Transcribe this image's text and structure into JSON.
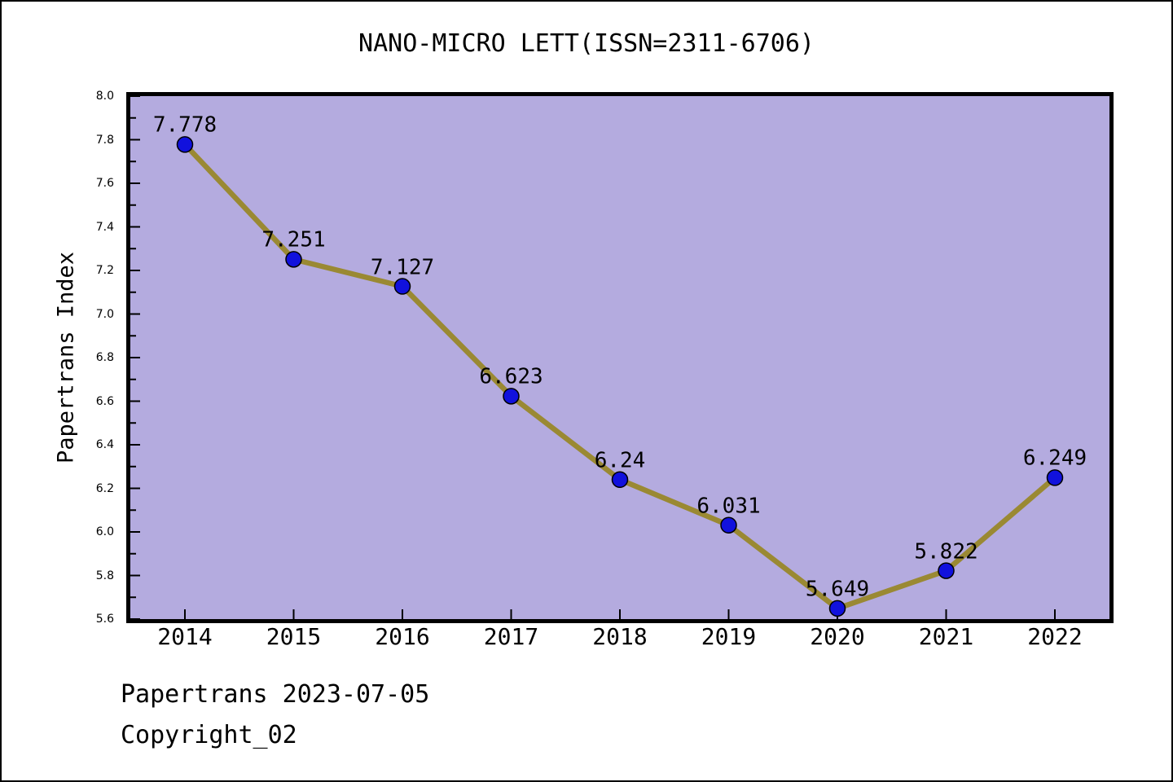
{
  "chart_data": {
    "type": "line",
    "title": "NANO-MICRO LETT(ISSN=2311-6706)",
    "ylabel": "Papertrans Index",
    "xlabel": "",
    "categories": [
      "2014",
      "2015",
      "2016",
      "2017",
      "2018",
      "2019",
      "2020",
      "2021",
      "2022"
    ],
    "series": [
      {
        "name": "Papertrans Index",
        "values": [
          7.778,
          7.251,
          7.127,
          6.623,
          6.24,
          6.031,
          5.649,
          5.822,
          6.249
        ],
        "point_labels": [
          "7.778",
          "7.251",
          "7.127",
          "6.623",
          "6.24",
          "6.031",
          "5.649",
          "5.822",
          "6.249"
        ]
      }
    ],
    "ylim": [
      5.6,
      8.0
    ],
    "ytick_labels": [
      "8.0",
      "7.8",
      "7.6",
      "7.4",
      "7.2",
      "7.0",
      "6.8",
      "6.6",
      "6.4",
      "6.2",
      "6.0",
      "5.8",
      "5.6"
    ],
    "ytick_minor_values": [
      7.9,
      7.7,
      7.5,
      7.3,
      7.1,
      6.9,
      6.7,
      6.5,
      6.3,
      6.1,
      5.9,
      5.7
    ],
    "grid": false,
    "legend_position": "none",
    "colors": {
      "plot_background": "#b4abdf",
      "line": "#9a8933",
      "marker_fill": "#1111dd",
      "marker_edge": "#000000",
      "axis": "#000000",
      "text": "#000000"
    }
  },
  "footer": {
    "line1": "Papertrans 2023-07-05",
    "line2": "Copyright_02"
  }
}
